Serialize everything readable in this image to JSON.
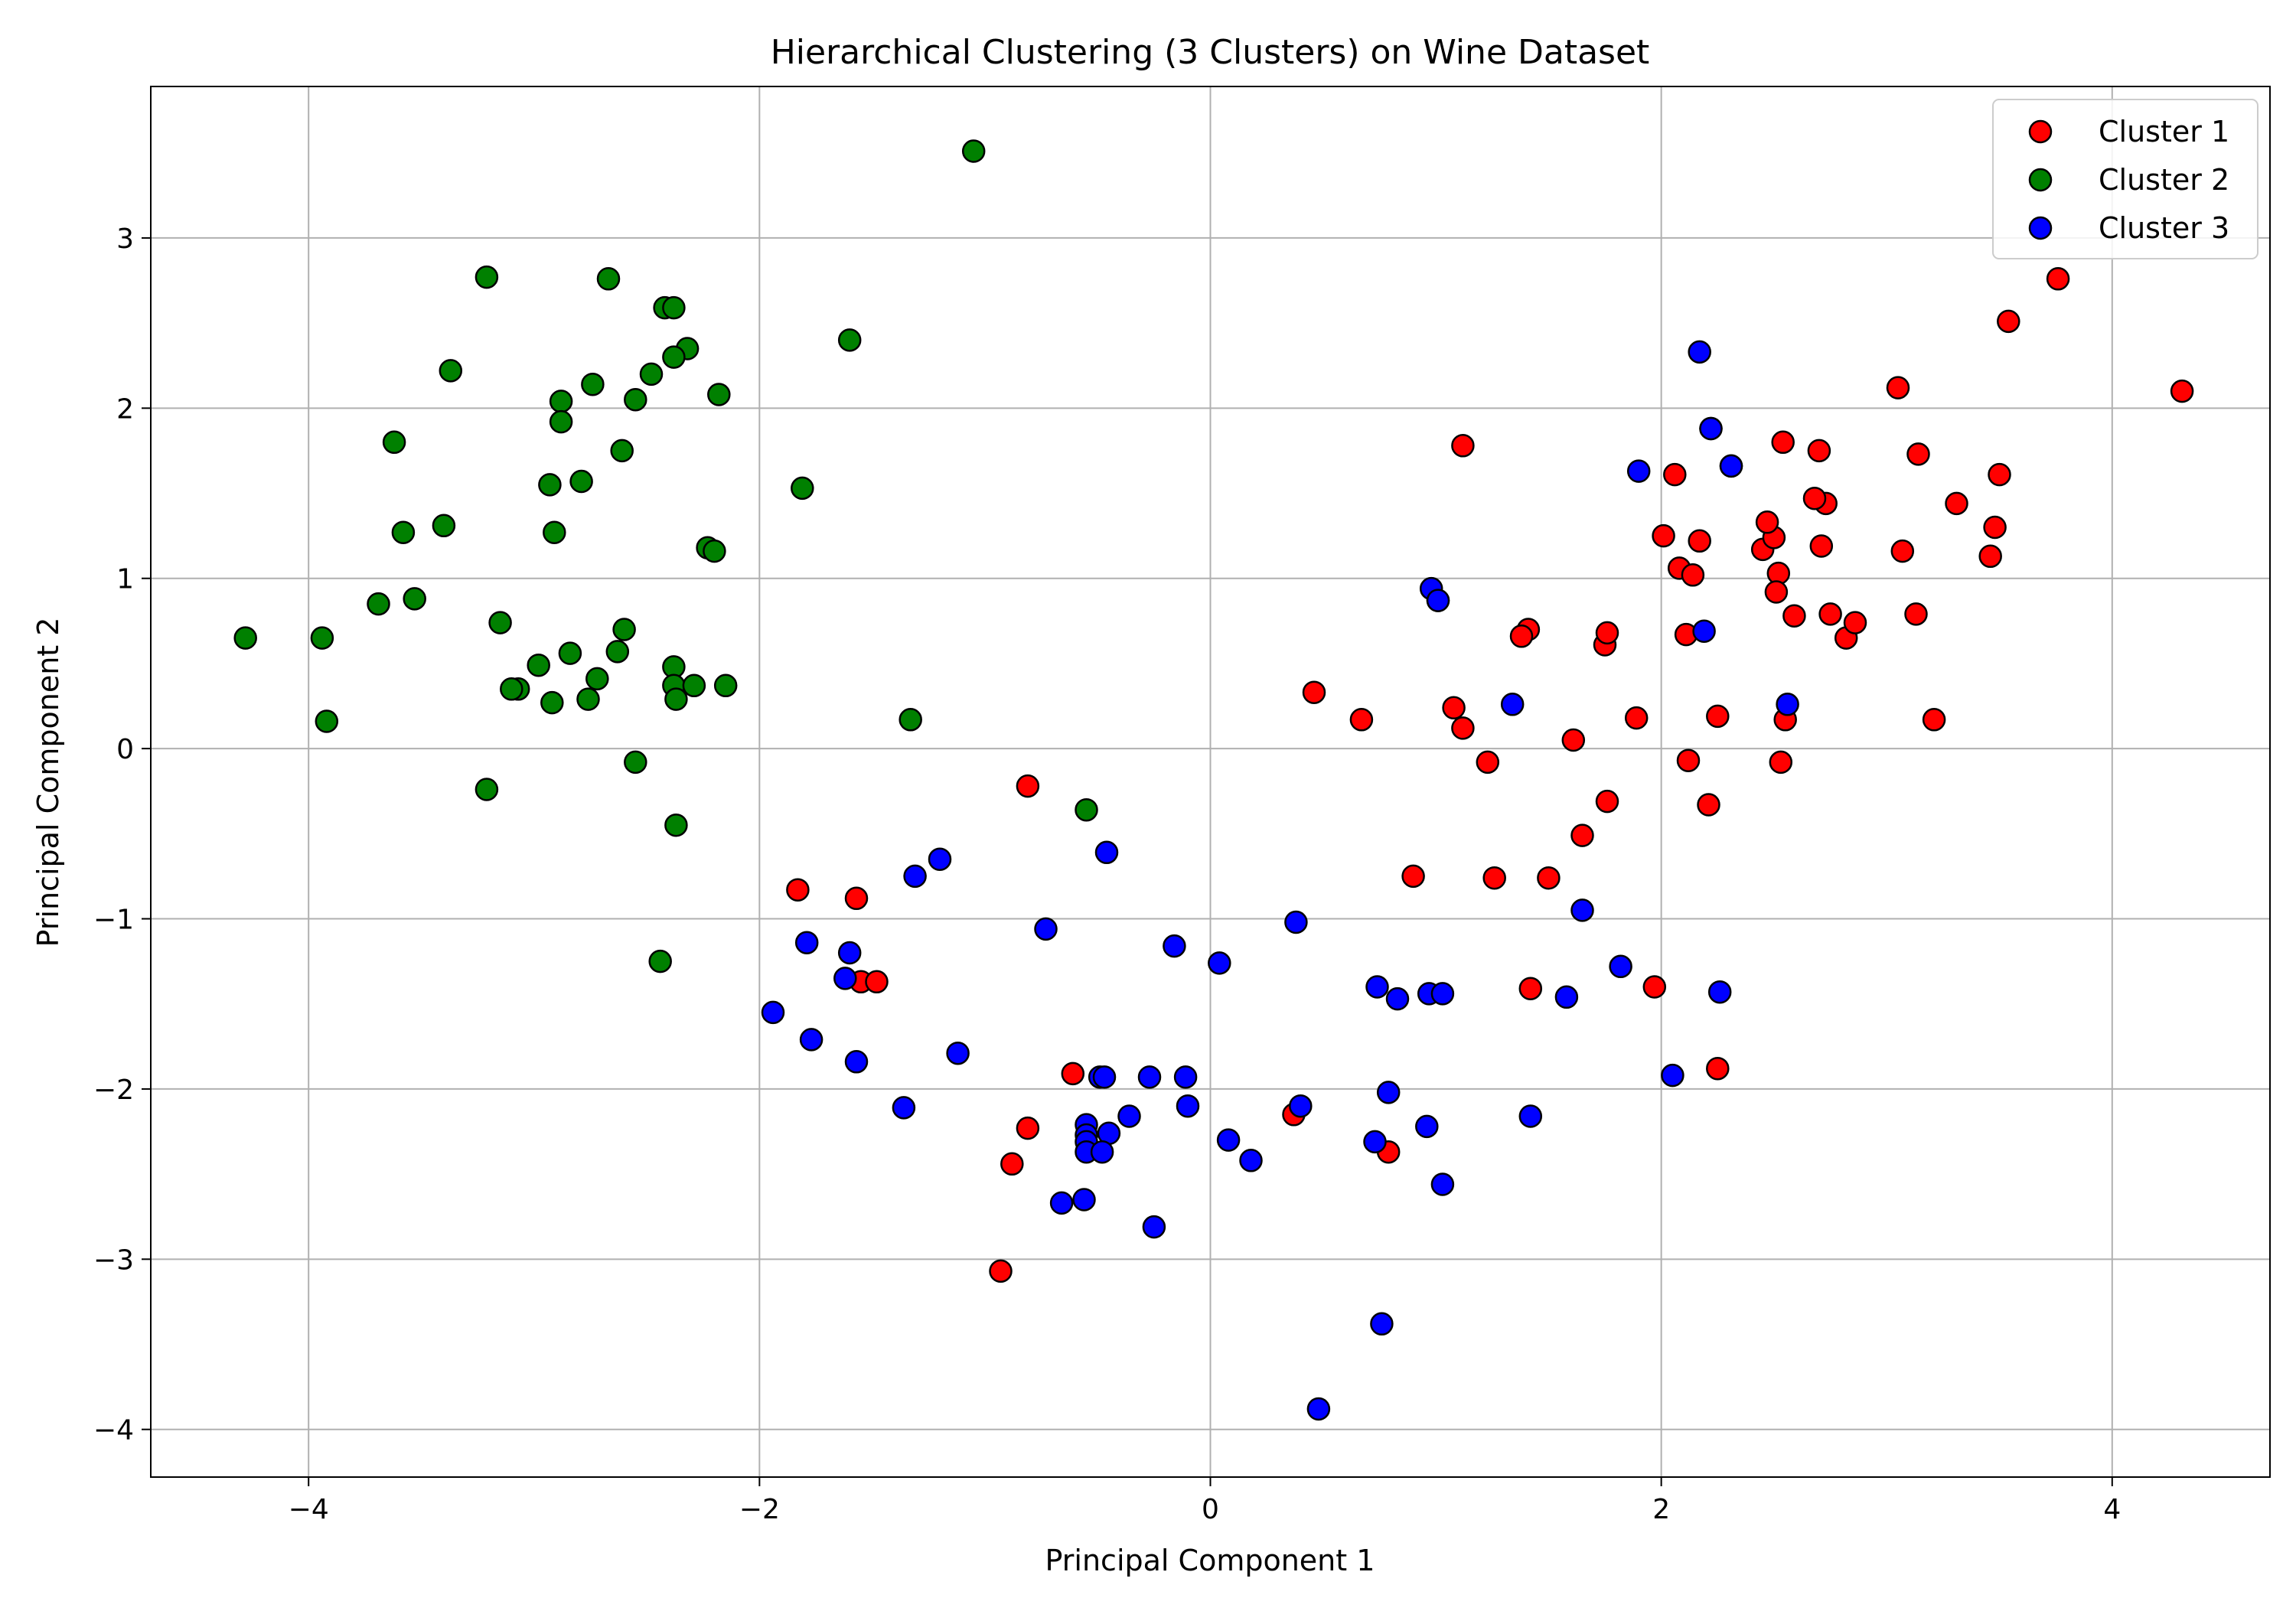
{
  "chart_data": {
    "type": "scatter",
    "title": "Hierarchical Clustering (3 Clusters) on Wine Dataset",
    "xlabel": "Principal Component 1",
    "ylabel": "Principal Component 2",
    "xlim": [
      -4.7,
      4.7
    ],
    "ylim": [
      -4.28,
      3.89
    ],
    "xticks": [
      -4,
      -2,
      0,
      2,
      4
    ],
    "yticks": [
      -4,
      -3,
      -2,
      -1,
      0,
      1,
      2,
      3
    ],
    "grid": true,
    "legend": "top-right",
    "series": [
      {
        "name": "Cluster 1",
        "color": "#ff0000",
        "points": [
          [
            3.31,
            1.44
          ],
          [
            2.21,
            -0.33
          ],
          [
            2.52,
            1.03
          ],
          [
            3.76,
            2.76
          ],
          [
            1.01,
            0.87
          ],
          [
            3.05,
            2.12
          ],
          [
            2.45,
            1.17
          ],
          [
            2.06,
            1.61
          ],
          [
            2.51,
            0.92
          ],
          [
            2.75,
            0.79
          ],
          [
            3.48,
            1.3
          ],
          [
            1.75,
            0.61
          ],
          [
            2.11,
            0.67
          ],
          [
            3.46,
            1.13
          ],
          [
            4.31,
            2.1
          ],
          [
            2.31,
            1.66
          ],
          [
            2.17,
            1.22
          ],
          [
            1.89,
            0.18
          ],
          [
            3.54,
            2.51
          ],
          [
            2.08,
            1.06
          ],
          [
            3.13,
            0.79
          ],
          [
            1.08,
            0.24
          ],
          [
            2.5,
            1.24
          ],
          [
            2.01,
            1.25
          ],
          [
            2.14,
            1.02
          ],
          [
            2.25,
            0.19
          ],
          [
            2.73,
            1.44
          ],
          [
            1.12,
            1.78
          ],
          [
            1.41,
            0.7
          ],
          [
            1.38,
            0.66
          ],
          [
            1.76,
            0.68
          ],
          [
            2.47,
            1.33
          ],
          [
            2.54,
            1.8
          ],
          [
            2.68,
            1.47
          ],
          [
            2.7,
            1.75
          ],
          [
            3.07,
            1.16
          ],
          [
            2.22,
            1.88
          ],
          [
            1.76,
            -0.31
          ],
          [
            2.59,
            0.78
          ],
          [
            2.82,
            0.65
          ],
          [
            3.21,
            0.17
          ],
          [
            3.14,
            1.73
          ],
          [
            2.53,
            -0.08
          ],
          [
            2.55,
            0.17
          ],
          [
            2.86,
            0.74
          ],
          [
            1.61,
            0.05
          ],
          [
            3.5,
            1.61
          ],
          [
            2.12,
            -0.07
          ],
          [
            1.23,
            -0.08
          ],
          [
            2.71,
            1.19
          ],
          [
            1.65,
            -0.51
          ],
          [
            1.5,
            -0.76
          ],
          [
            1.26,
            -0.76
          ],
          [
            0.9,
            -0.75
          ],
          [
            0.46,
            0.33
          ],
          [
            0.67,
            0.17
          ],
          [
            1.12,
            0.12
          ],
          [
            -0.81,
            -0.22
          ],
          [
            -1.83,
            -0.83
          ],
          [
            -1.57,
            -0.88
          ],
          [
            -1.55,
            -1.37
          ],
          [
            -1.48,
            -1.37
          ],
          [
            -0.61,
            -1.91
          ],
          [
            -0.81,
            -2.23
          ],
          [
            -0.88,
            -2.44
          ],
          [
            -0.93,
            -3.07
          ],
          [
            0.37,
            -2.15
          ],
          [
            0.79,
            -2.37
          ],
          [
            1.42,
            -1.41
          ],
          [
            1.97,
            -1.4
          ],
          [
            2.25,
            -1.88
          ]
        ]
      },
      {
        "name": "Cluster 2",
        "color": "#008000",
        "points": [
          [
            -3.21,
            2.77
          ],
          [
            -2.67,
            2.76
          ],
          [
            -2.42,
            2.59
          ],
          [
            -2.38,
            2.59
          ],
          [
            -3.37,
            2.22
          ],
          [
            -2.32,
            2.35
          ],
          [
            -2.38,
            2.3
          ],
          [
            -2.48,
            2.2
          ],
          [
            -2.74,
            2.14
          ],
          [
            -2.88,
            2.04
          ],
          [
            -2.55,
            2.05
          ],
          [
            -2.18,
            2.08
          ],
          [
            -2.88,
            1.92
          ],
          [
            -3.62,
            1.8
          ],
          [
            -2.61,
            1.75
          ],
          [
            -2.93,
            1.55
          ],
          [
            -2.79,
            1.57
          ],
          [
            -3.4,
            1.31
          ],
          [
            -3.58,
            1.27
          ],
          [
            -2.91,
            1.27
          ],
          [
            -2.23,
            1.18
          ],
          [
            -2.2,
            1.16
          ],
          [
            -3.69,
            0.85
          ],
          [
            -3.53,
            0.88
          ],
          [
            -4.28,
            0.65
          ],
          [
            -3.94,
            0.65
          ],
          [
            -3.15,
            0.74
          ],
          [
            -2.6,
            0.7
          ],
          [
            -3.07,
            0.35
          ],
          [
            -3.1,
            0.35
          ],
          [
            -2.98,
            0.49
          ],
          [
            -2.84,
            0.56
          ],
          [
            -2.63,
            0.57
          ],
          [
            -2.38,
            0.48
          ],
          [
            -2.92,
            0.27
          ],
          [
            -2.76,
            0.29
          ],
          [
            -2.72,
            0.41
          ],
          [
            -2.38,
            0.37
          ],
          [
            -2.29,
            0.37
          ],
          [
            -2.15,
            0.37
          ],
          [
            -2.37,
            0.29
          ],
          [
            -3.92,
            0.16
          ],
          [
            -2.55,
            -0.08
          ],
          [
            -3.21,
            -0.24
          ],
          [
            -2.37,
            -0.45
          ],
          [
            -2.44,
            -1.25
          ],
          [
            -1.81,
            1.53
          ],
          [
            -1.6,
            2.4
          ],
          [
            -1.05,
            3.51
          ],
          [
            -1.33,
            0.17
          ],
          [
            -0.55,
            -0.36
          ]
        ]
      },
      {
        "name": "Cluster 3",
        "color": "#0000ff",
        "points": [
          [
            2.17,
            2.33
          ],
          [
            2.22,
            1.88
          ],
          [
            2.31,
            1.66
          ],
          [
            1.9,
            1.63
          ],
          [
            0.98,
            0.94
          ],
          [
            1.01,
            0.87
          ],
          [
            2.19,
            0.69
          ],
          [
            1.34,
            0.26
          ],
          [
            2.56,
            0.26
          ],
          [
            -1.2,
            -0.65
          ],
          [
            -1.31,
            -0.75
          ],
          [
            -0.46,
            -0.61
          ],
          [
            -0.73,
            -1.06
          ],
          [
            -0.16,
            -1.16
          ],
          [
            0.04,
            -1.26
          ],
          [
            0.38,
            -1.02
          ],
          [
            1.65,
            -0.95
          ],
          [
            -1.79,
            -1.14
          ],
          [
            -1.6,
            -1.2
          ],
          [
            -1.62,
            -1.35
          ],
          [
            -1.94,
            -1.55
          ],
          [
            -1.77,
            -1.71
          ],
          [
            -1.57,
            -1.84
          ],
          [
            -1.12,
            -1.79
          ],
          [
            -1.36,
            -2.11
          ],
          [
            -0.49,
            -1.93
          ],
          [
            -0.47,
            -1.93
          ],
          [
            -0.27,
            -1.93
          ],
          [
            -0.11,
            -1.93
          ],
          [
            -0.1,
            -2.1
          ],
          [
            -0.55,
            -2.21
          ],
          [
            -0.55,
            -2.27
          ],
          [
            -0.55,
            -2.31
          ],
          [
            -0.55,
            -2.37
          ],
          [
            -0.45,
            -2.26
          ],
          [
            -0.48,
            -2.37
          ],
          [
            -0.36,
            -2.16
          ],
          [
            0.08,
            -2.3
          ],
          [
            0.18,
            -2.42
          ],
          [
            -0.66,
            -2.67
          ],
          [
            -0.56,
            -2.65
          ],
          [
            -0.25,
            -2.81
          ],
          [
            0.4,
            -2.1
          ],
          [
            0.74,
            -1.4
          ],
          [
            0.83,
            -1.47
          ],
          [
            0.97,
            -1.44
          ],
          [
            1.03,
            -1.44
          ],
          [
            1.58,
            -1.46
          ],
          [
            1.82,
            -1.28
          ],
          [
            2.26,
            -1.43
          ],
          [
            0.79,
            -2.02
          ],
          [
            0.73,
            -2.31
          ],
          [
            0.96,
            -2.22
          ],
          [
            1.03,
            -2.56
          ],
          [
            1.42,
            -2.16
          ],
          [
            2.05,
            -1.92
          ],
          [
            0.76,
            -3.38
          ],
          [
            0.48,
            -3.88
          ]
        ]
      }
    ]
  }
}
